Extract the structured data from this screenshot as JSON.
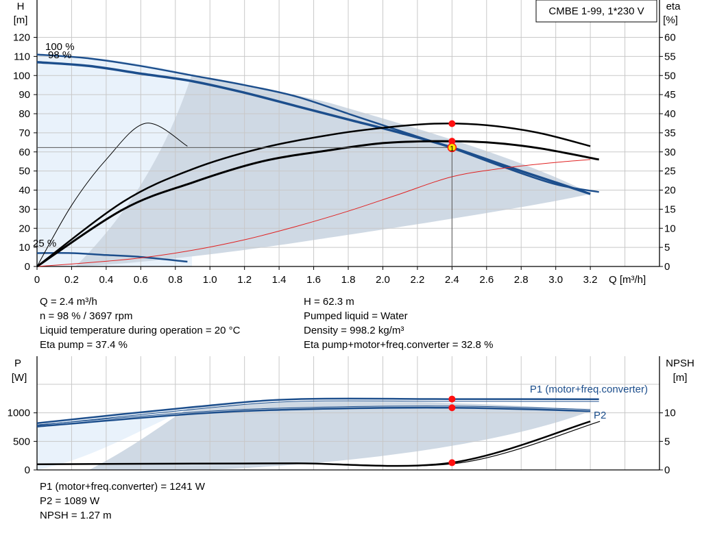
{
  "chart_data": [
    {
      "type": "line",
      "title": "CMBE 1-99, 1*230 V",
      "y_left_label": "H",
      "y_left_unit": "[m]",
      "y_right_label": "eta",
      "y_right_unit": "[%]",
      "x_label": "Q [m³/h]",
      "xlim": [
        0,
        3.6
      ],
      "ylim": [
        0,
        120
      ],
      "ylim_right": [
        0,
        60
      ],
      "x_ticks": [
        "0",
        "0.2",
        "0.4",
        "0.6",
        "0.8",
        "1.0",
        "1.2",
        "1.4",
        "1.6",
        "1.8",
        "2.0",
        "2.2",
        "2.4",
        "2.6",
        "2.8",
        "3.0",
        "3.2"
      ],
      "y_ticks": [
        "0",
        "10",
        "20",
        "30",
        "40",
        "50",
        "60",
        "70",
        "80",
        "90",
        "100",
        "110",
        "120"
      ],
      "y_right_ticks": [
        "0",
        "5",
        "10",
        "15",
        "20",
        "25",
        "30",
        "35",
        "40",
        "45",
        "50",
        "55",
        "60"
      ],
      "grid": true,
      "speed_labels": [
        "100 %",
        "98 %",
        "25 %"
      ],
      "series": [
        {
          "x": [
            0,
            0.3,
            0.6,
            0.9,
            1.2,
            1.5,
            1.8,
            2.1,
            2.4,
            2.7,
            3.0,
            3.25
          ],
          "values": [
            111,
            109,
            105,
            100,
            95,
            89,
            80,
            71,
            62,
            52,
            43,
            39
          ]
        },
        {
          "x": [
            0,
            0.3,
            0.6,
            0.9,
            1.2,
            1.5,
            1.8,
            2.1,
            2.4,
            2.7,
            3.0,
            3.2
          ],
          "values": [
            107,
            105,
            101,
            97,
            91,
            84,
            77,
            70,
            62.3,
            53,
            44,
            38
          ]
        },
        {
          "x": [
            0,
            0.2,
            0.4,
            0.6,
            0.87
          ],
          "values": [
            7,
            7,
            6,
            5,
            2.5
          ]
        },
        {
          "x": [
            0,
            0.3,
            0.6,
            0.9,
            1.2,
            1.5,
            1.8,
            2.1,
            2.4,
            2.7,
            3.0,
            3.2
          ],
          "values": [
            0,
            2,
            4.5,
            8.5,
            14,
            21,
            29,
            38,
            47,
            51.5,
            54.5,
            56
          ]
        },
        {
          "x": [
            0,
            0.5,
            0.9,
            1.3,
            1.7,
            2.0,
            2.3,
            2.6,
            2.9,
            3.2
          ],
          "values": [
            0,
            17,
            25.5,
            31,
            34.5,
            36.3,
            37.4,
            37.0,
            35.0,
            31.5
          ]
        },
        {
          "x": [
            0,
            0.5,
            0.9,
            1.3,
            1.7,
            2.0,
            2.3,
            2.6,
            2.9,
            3.25
          ],
          "values": [
            0,
            15,
            22,
            27.5,
            30.5,
            32.3,
            32.8,
            32.5,
            31,
            28
          ]
        },
        {
          "x": [
            0,
            0.2,
            0.4,
            0.63,
            0.87
          ],
          "values": [
            0,
            16,
            28,
            37.5,
            31.5
          ]
        }
      ],
      "operating_point": {
        "x": 2.4,
        "y": 62.3,
        "eta_pump": 37.4,
        "eta_total": 32.8,
        "marker_label": "1"
      }
    },
    {
      "type": "line",
      "y_left_label": "P",
      "y_left_unit": "[W]",
      "y_right_label": "NPSH",
      "y_right_unit": "[m]",
      "xlim": [
        0,
        3.6
      ],
      "ylim": [
        0,
        1800
      ],
      "ylim_right": [
        0,
        18
      ],
      "y_ticks": [
        "0",
        "500",
        "1000"
      ],
      "y_right_ticks": [
        "0",
        "5",
        "10"
      ],
      "grid": true,
      "series": [
        {
          "name": "P1 (motor+freq.converter)",
          "x": [
            0,
            0.9,
            1.5,
            2.4,
            3.25
          ],
          "values": [
            820,
            1100,
            1240,
            1241,
            1240
          ]
        },
        {
          "name": "P2",
          "x": [
            0,
            0.9,
            1.5,
            2.4,
            3.2
          ],
          "values": [
            760,
            980,
            1060,
            1089,
            1030
          ]
        },
        {
          "x": [
            0,
            0.9,
            1.5,
            2.4,
            3.2
          ],
          "values": [
            1.0,
            1.1,
            1.15,
            1.27,
            8.5
          ]
        }
      ],
      "operating_point": {
        "x": 2.4,
        "p1": 1241,
        "p2": 1089,
        "npsh": 1.27
      }
    }
  ],
  "info_top_left": [
    "Q = 2.4 m³/h",
    "n = 98 % / 3697 rpm",
    "Liquid temperature during operation = 20 °C",
    "Eta pump = 37.4 %"
  ],
  "info_top_right": [
    "H = 62.3 m",
    "Pumped liquid = Water",
    "Density = 998.2 kg/m³",
    "Eta pump+motor+freq.converter = 32.8 %"
  ],
  "info_bottom": [
    "P1 (motor+freq.converter) = 1241 W",
    "P2 = 1089 W",
    "NPSH = 1.27 m"
  ],
  "colors": {
    "grid": "#c8c8c8",
    "axis": "#000000",
    "region_dark": "#cfd9e4",
    "region_light": "#e9f2fb",
    "curve_blue": "#1c4e8c",
    "curve_black": "#000000",
    "system_curve": "#e02020",
    "operating_marker": "#ff1010"
  }
}
